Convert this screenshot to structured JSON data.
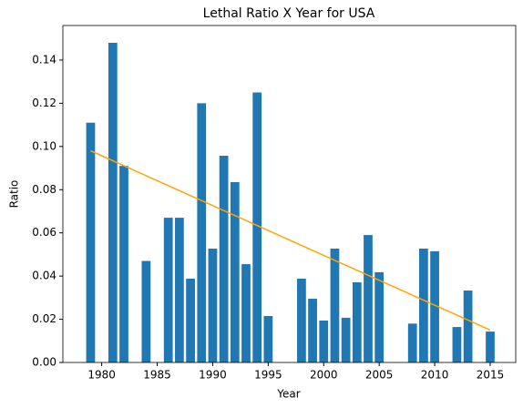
{
  "chart_data": {
    "type": "bar",
    "title": "Lethal Ratio X Year for USA",
    "x_label": "Year",
    "y_label": "Ratio",
    "x": [
      1979,
      1981,
      1982,
      1984,
      1986,
      1987,
      1988,
      1989,
      1990,
      1991,
      1992,
      1993,
      1994,
      1995,
      1998,
      1999,
      2000,
      2001,
      2002,
      2003,
      2004,
      2005,
      2008,
      2009,
      2010,
      2012,
      2013,
      2015
    ],
    "values": [
      0.111,
      0.148,
      0.091,
      0.047,
      0.067,
      0.067,
      0.0388,
      0.12,
      0.0527,
      0.0957,
      0.0835,
      0.0455,
      0.125,
      0.0215,
      0.0388,
      0.0295,
      0.0194,
      0.0527,
      0.0207,
      0.0371,
      0.059,
      0.0418,
      0.018,
      0.0527,
      0.0515,
      0.0164,
      0.0333,
      0.0143
    ],
    "color": "#1f77b4",
    "trend": {
      "x": [
        1979,
        2015
      ],
      "values": [
        0.098,
        0.015
      ],
      "color": "orange"
    },
    "xlim": [
      1976.5,
      2017.3
    ],
    "ylim": [
      0,
      0.156
    ],
    "xticks": [
      1980,
      1985,
      1990,
      1995,
      2000,
      2005,
      2010,
      2015
    ],
    "yticks": [
      {
        "value": 0,
        "label": "0.00"
      },
      {
        "value": 0.02,
        "label": "0.02"
      },
      {
        "value": 0.04,
        "label": "0.04"
      },
      {
        "value": 0.06,
        "label": "0.06"
      },
      {
        "value": 0.08,
        "label": "0.08"
      },
      {
        "value": 0.1,
        "label": "0.10"
      },
      {
        "value": 0.12,
        "label": "0.12"
      },
      {
        "value": 0.14,
        "label": "0.14"
      }
    ]
  }
}
